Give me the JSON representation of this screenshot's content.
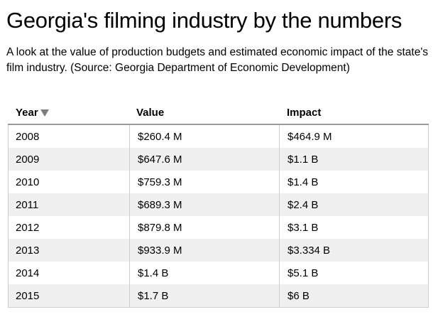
{
  "title": "Georgia's filming industry by the numbers",
  "subtitle": "A look at the value of production budgets and estimated economic impact of the state's film industry. (Source: Georgia Department of Economic Development)",
  "table": {
    "headers": {
      "year": "Year",
      "value": "Value",
      "impact": "Impact"
    },
    "sort_icon": "triangle-down-icon",
    "rows": [
      {
        "year": "2008",
        "value": "$260.4 M",
        "impact": "$464.9 M"
      },
      {
        "year": "2009",
        "value": "$647.6 M",
        "impact": "$1.1 B"
      },
      {
        "year": "2010",
        "value": "$759.3 M",
        "impact": "$1.4 B"
      },
      {
        "year": "2011",
        "value": "$689.3 M",
        "impact": "$2.4 B"
      },
      {
        "year": "2012",
        "value": "$879.8 M",
        "impact": "$3.1 B"
      },
      {
        "year": "2013",
        "value": "$933.9 M",
        "impact": "$3.334 B"
      },
      {
        "year": "2014",
        "value": "$1.4 B",
        "impact": "$5.1 B"
      },
      {
        "year": "2015",
        "value": "$1.7 B",
        "impact": "$6 B"
      }
    ]
  }
}
